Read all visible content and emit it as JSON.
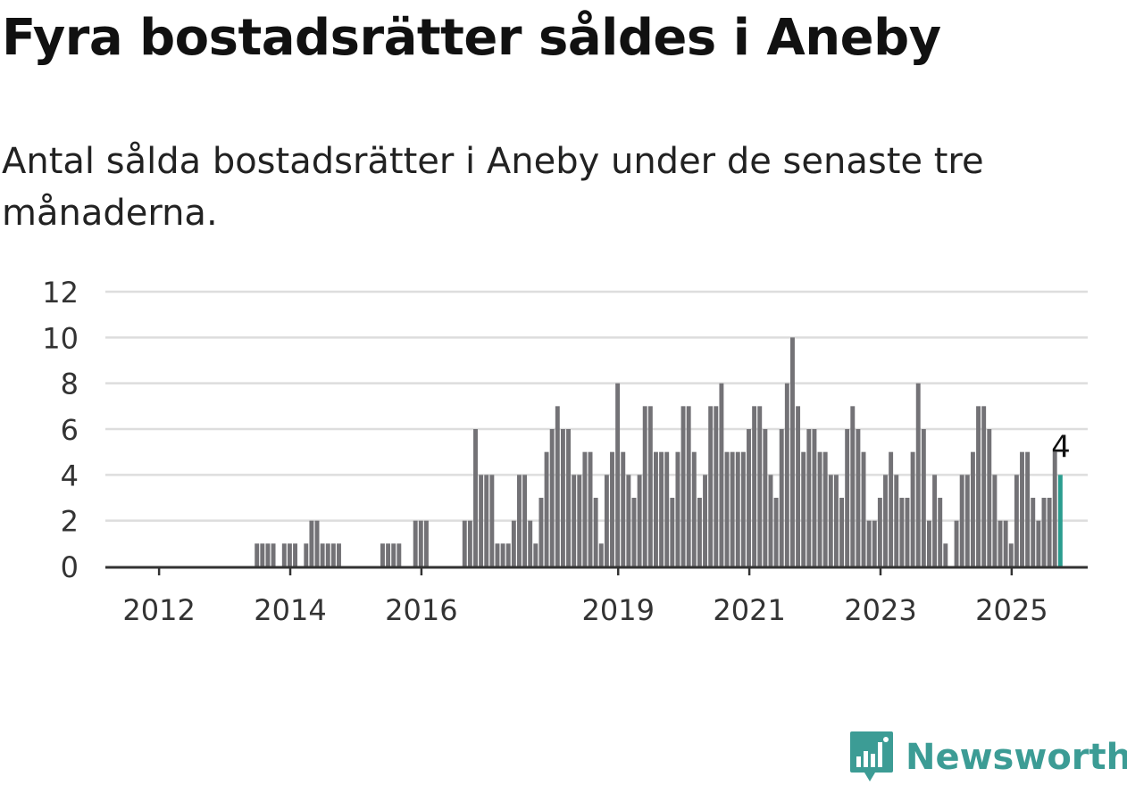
{
  "header": {
    "title": "Fyra bostadsrätter såldes i Aneby",
    "subtitle": "Antal sålda bostadsrätter i Aneby under de senaste tre månaderna."
  },
  "logo": {
    "text": "Newsworthy",
    "icon": "newsworthy-logo-icon",
    "color": "#3c9c95"
  },
  "chart_data": {
    "type": "bar",
    "title": "",
    "xlabel": "",
    "ylabel": "",
    "ylim": [
      0,
      12
    ],
    "yticks": [
      0,
      2,
      4,
      6,
      8,
      10,
      12
    ],
    "x_start": "2011-04",
    "x_ticks": [
      {
        "label": "2012",
        "date": "2012-01"
      },
      {
        "label": "2014",
        "date": "2014-01"
      },
      {
        "label": "2016",
        "date": "2016-01"
      },
      {
        "label": "2019",
        "date": "2019-01"
      },
      {
        "label": "2021",
        "date": "2021-01"
      },
      {
        "label": "2023",
        "date": "2023-01"
      },
      {
        "label": "2025",
        "date": "2025-01"
      }
    ],
    "grid": true,
    "bar_color": "#737276",
    "highlight_color": "#2a9d8f",
    "highlight_label": "4",
    "values": [
      0,
      0,
      0,
      0,
      0,
      0,
      0,
      0,
      0,
      0,
      0,
      0,
      0,
      0,
      0,
      0,
      0,
      0,
      0,
      0,
      0,
      0,
      0,
      0,
      0,
      0,
      0,
      1,
      1,
      1,
      1,
      0,
      1,
      1,
      1,
      0,
      1,
      2,
      2,
      1,
      1,
      1,
      1,
      0,
      0,
      0,
      0,
      0,
      0,
      0,
      1,
      1,
      1,
      1,
      0,
      0,
      2,
      2,
      2,
      0,
      0,
      0,
      0,
      0,
      0,
      2,
      2,
      6,
      4,
      4,
      4,
      1,
      1,
      1,
      2,
      4,
      4,
      2,
      1,
      3,
      5,
      6,
      7,
      6,
      6,
      4,
      4,
      5,
      5,
      3,
      1,
      4,
      5,
      8,
      5,
      4,
      3,
      4,
      7,
      7,
      5,
      5,
      5,
      3,
      5,
      7,
      7,
      5,
      3,
      4,
      7,
      7,
      8,
      5,
      5,
      5,
      5,
      6,
      7,
      7,
      6,
      4,
      3,
      6,
      8,
      10,
      7,
      5,
      6,
      6,
      5,
      5,
      4,
      4,
      3,
      6,
      7,
      6,
      5,
      2,
      2,
      3,
      4,
      5,
      4,
      3,
      3,
      5,
      8,
      6,
      2,
      4,
      3,
      1,
      0,
      2,
      4,
      4,
      5,
      7,
      7,
      6,
      4,
      2,
      2,
      1,
      4,
      5,
      5,
      3,
      2,
      3,
      3,
      5,
      4
    ]
  }
}
